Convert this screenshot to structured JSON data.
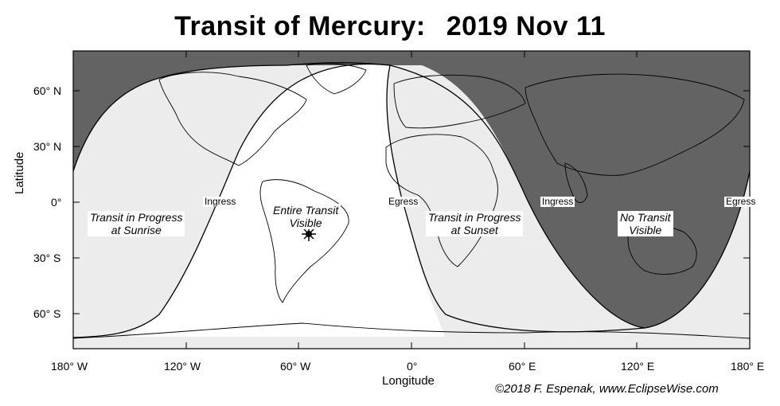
{
  "title": {
    "main": "Transit of Mercury:",
    "date": "2019 Nov 11"
  },
  "axes": {
    "y_title": "Latitude",
    "x_title": "Longitude",
    "y_ticks": [
      "60° N",
      "30° N",
      "0°",
      "30° S",
      "60° S"
    ],
    "x_ticks": [
      "180° W",
      "120° W",
      "60° W",
      "0°",
      "60° E",
      "120° E",
      "180° E"
    ]
  },
  "regions": {
    "sunrise": "Transit in Progress\nat Sunrise",
    "entire": "Entire Transit\nVisible",
    "sunset": "Transit in Progress\nat Sunset",
    "none": "No Transit\nVisible"
  },
  "edge_labels": {
    "ingress_west": "Ingress",
    "egress_west": "Egress",
    "ingress_east": "Ingress",
    "egress_east": "Egress"
  },
  "credit": "©2018  F. Espenak,  www.EclipseWise.com",
  "colors": {
    "dark_zone": "#636363",
    "light_zone": "#ececec",
    "visible_zone": "#ffffff",
    "border": "#000000"
  },
  "markers": {
    "subsolar_icon": "sun-icon"
  }
}
